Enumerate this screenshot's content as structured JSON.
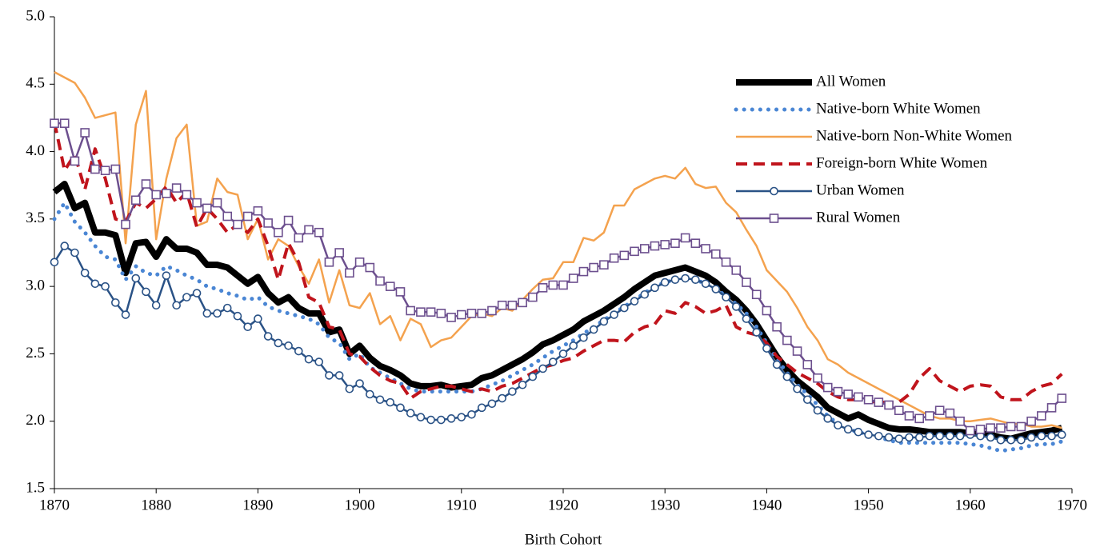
{
  "chart_data": {
    "type": "line",
    "x_label": "Birth Cohort",
    "x": [
      1870,
      1871,
      1872,
      1873,
      1874,
      1875,
      1876,
      1877,
      1878,
      1879,
      1880,
      1881,
      1882,
      1883,
      1884,
      1885,
      1886,
      1887,
      1888,
      1889,
      1890,
      1891,
      1892,
      1893,
      1894,
      1895,
      1896,
      1897,
      1898,
      1899,
      1900,
      1901,
      1902,
      1903,
      1904,
      1905,
      1906,
      1907,
      1908,
      1909,
      1910,
      1911,
      1912,
      1913,
      1914,
      1915,
      1916,
      1917,
      1918,
      1919,
      1920,
      1921,
      1922,
      1923,
      1924,
      1925,
      1926,
      1927,
      1928,
      1929,
      1930,
      1931,
      1932,
      1933,
      1934,
      1935,
      1936,
      1937,
      1938,
      1939,
      1940,
      1941,
      1942,
      1943,
      1944,
      1945,
      1946,
      1947,
      1948,
      1949,
      1950,
      1951,
      1952,
      1953,
      1954,
      1955,
      1956,
      1957,
      1958,
      1959,
      1960,
      1961,
      1962,
      1963,
      1964,
      1965,
      1966,
      1967,
      1968,
      1969
    ],
    "xlim": [
      1870,
      1970
    ],
    "xticks": [
      1870,
      1880,
      1890,
      1900,
      1910,
      1920,
      1930,
      1940,
      1950,
      1960,
      1970
    ],
    "ylim": [
      1.5,
      5.0
    ],
    "yticks": [
      {
        "value": 1.5,
        "label": "1.5"
      },
      {
        "value": 2.0,
        "label": "2.0"
      },
      {
        "value": 2.5,
        "label": "2.5"
      },
      {
        "value": 3.0,
        "label": "3.0"
      },
      {
        "value": 3.5,
        "label": "3.5"
      },
      {
        "value": 4.0,
        "label": "4.0"
      },
      {
        "value": 4.5,
        "label": "4.5"
      },
      {
        "value": 5.0,
        "label": "5.0"
      }
    ],
    "grid": false,
    "legend": "upper right",
    "series": [
      {
        "name": "All Women",
        "color": "#000000",
        "width": 8,
        "dash": "solid",
        "marker": null,
        "values": [
          3.7,
          3.76,
          3.58,
          3.62,
          3.4,
          3.4,
          3.38,
          3.1,
          3.32,
          3.33,
          3.22,
          3.35,
          3.28,
          3.28,
          3.25,
          3.16,
          3.16,
          3.14,
          3.08,
          3.02,
          3.07,
          2.95,
          2.88,
          2.92,
          2.84,
          2.8,
          2.8,
          2.66,
          2.68,
          2.5,
          2.56,
          2.47,
          2.41,
          2.38,
          2.34,
          2.28,
          2.26,
          2.26,
          2.27,
          2.25,
          2.26,
          2.27,
          2.32,
          2.34,
          2.38,
          2.42,
          2.46,
          2.51,
          2.57,
          2.6,
          2.64,
          2.68,
          2.74,
          2.78,
          2.82,
          2.87,
          2.92,
          2.98,
          3.03,
          3.08,
          3.1,
          3.12,
          3.14,
          3.11,
          3.08,
          3.03,
          2.96,
          2.9,
          2.82,
          2.72,
          2.6,
          2.48,
          2.38,
          2.3,
          2.24,
          2.18,
          2.1,
          2.06,
          2.02,
          2.05,
          2.01,
          1.98,
          1.95,
          1.94,
          1.94,
          1.93,
          1.92,
          1.92,
          1.92,
          1.92,
          1.91,
          1.91,
          1.9,
          1.88,
          1.87,
          1.89,
          1.91,
          1.92,
          1.93,
          1.95
        ]
      },
      {
        "name": "Native-born White Women",
        "color": "#4a86d4",
        "width": 5,
        "dash": "dotted",
        "marker": null,
        "values": [
          3.5,
          3.62,
          3.48,
          3.4,
          3.3,
          3.22,
          3.2,
          3.05,
          3.15,
          3.1,
          3.08,
          3.15,
          3.12,
          3.08,
          3.05,
          3.0,
          2.98,
          2.95,
          2.93,
          2.9,
          2.92,
          2.85,
          2.82,
          2.8,
          2.78,
          2.76,
          2.72,
          2.62,
          2.58,
          2.46,
          2.5,
          2.4,
          2.36,
          2.32,
          2.28,
          2.24,
          2.22,
          2.22,
          2.22,
          2.22,
          2.22,
          2.22,
          2.24,
          2.27,
          2.3,
          2.34,
          2.38,
          2.42,
          2.47,
          2.52,
          2.56,
          2.6,
          2.65,
          2.7,
          2.75,
          2.8,
          2.85,
          2.9,
          2.95,
          3.0,
          3.03,
          3.05,
          3.06,
          3.05,
          3.02,
          2.98,
          2.93,
          2.87,
          2.8,
          2.7,
          2.58,
          2.46,
          2.36,
          2.27,
          2.2,
          2.12,
          2.04,
          1.98,
          1.94,
          1.92,
          1.9,
          1.88,
          1.86,
          1.84,
          1.84,
          1.84,
          1.84,
          1.84,
          1.84,
          1.84,
          1.83,
          1.82,
          1.8,
          1.78,
          1.79,
          1.8,
          1.82,
          1.83,
          1.83,
          1.85
        ]
      },
      {
        "name": "Native-born Non-White Women",
        "color": "#f4a24e",
        "width": 2.5,
        "dash": "solid",
        "marker": null,
        "values": [
          4.59,
          4.55,
          4.51,
          4.4,
          4.25,
          4.27,
          4.29,
          3.32,
          4.2,
          4.45,
          3.35,
          3.8,
          4.1,
          4.2,
          3.45,
          3.48,
          3.8,
          3.7,
          3.68,
          3.35,
          3.5,
          3.2,
          3.35,
          3.3,
          3.15,
          3.02,
          3.2,
          2.88,
          3.12,
          2.86,
          2.84,
          2.95,
          2.72,
          2.78,
          2.6,
          2.76,
          2.72,
          2.55,
          2.6,
          2.62,
          2.7,
          2.78,
          2.8,
          2.78,
          2.84,
          2.82,
          2.9,
          2.98,
          3.05,
          3.06,
          3.18,
          3.18,
          3.36,
          3.34,
          3.4,
          3.6,
          3.6,
          3.72,
          3.76,
          3.8,
          3.82,
          3.8,
          3.88,
          3.76,
          3.73,
          3.74,
          3.62,
          3.55,
          3.42,
          3.3,
          3.12,
          3.04,
          2.96,
          2.84,
          2.7,
          2.6,
          2.46,
          2.42,
          2.36,
          2.32,
          2.28,
          2.24,
          2.2,
          2.16,
          2.12,
          2.08,
          2.04,
          2.02,
          2.02,
          2.0,
          2.0,
          2.01,
          2.02,
          2.0,
          1.98,
          1.98,
          1.96,
          1.96,
          1.97,
          1.95
        ]
      },
      {
        "name": "Foreign-born White Women",
        "color": "#c0141c",
        "width": 4,
        "dash": "dashed",
        "marker": null,
        "values": [
          4.22,
          3.86,
          3.98,
          3.72,
          4.02,
          3.8,
          3.5,
          3.48,
          3.62,
          3.58,
          3.65,
          3.74,
          3.62,
          3.7,
          3.44,
          3.58,
          3.5,
          3.4,
          3.46,
          3.4,
          3.5,
          3.3,
          3.05,
          3.32,
          3.18,
          2.92,
          2.88,
          2.7,
          2.68,
          2.5,
          2.48,
          2.4,
          2.34,
          2.3,
          2.28,
          2.17,
          2.22,
          2.24,
          2.26,
          2.26,
          2.24,
          2.22,
          2.24,
          2.22,
          2.26,
          2.28,
          2.32,
          2.36,
          2.4,
          2.42,
          2.45,
          2.47,
          2.52,
          2.56,
          2.6,
          2.6,
          2.59,
          2.66,
          2.7,
          2.72,
          2.82,
          2.8,
          2.88,
          2.85,
          2.8,
          2.82,
          2.86,
          2.7,
          2.66,
          2.64,
          2.58,
          2.48,
          2.42,
          2.36,
          2.32,
          2.28,
          2.22,
          2.18,
          2.16,
          2.16,
          2.15,
          2.14,
          2.14,
          2.14,
          2.2,
          2.32,
          2.39,
          2.3,
          2.26,
          2.22,
          2.26,
          2.27,
          2.26,
          2.18,
          2.16,
          2.16,
          2.22,
          2.26,
          2.28,
          2.35
        ]
      },
      {
        "name": "Urban Women",
        "color": "#2a5286",
        "width": 2.5,
        "dash": "solid",
        "marker": "circle",
        "values": [
          3.18,
          3.3,
          3.25,
          3.1,
          3.02,
          3.0,
          2.88,
          2.79,
          3.06,
          2.96,
          2.86,
          3.08,
          2.86,
          2.92,
          2.95,
          2.8,
          2.8,
          2.84,
          2.78,
          2.7,
          2.76,
          2.63,
          2.58,
          2.56,
          2.52,
          2.46,
          2.44,
          2.34,
          2.34,
          2.24,
          2.28,
          2.2,
          2.16,
          2.14,
          2.1,
          2.06,
          2.03,
          2.01,
          2.01,
          2.02,
          2.03,
          2.05,
          2.1,
          2.13,
          2.17,
          2.22,
          2.27,
          2.33,
          2.39,
          2.44,
          2.5,
          2.56,
          2.62,
          2.68,
          2.74,
          2.79,
          2.84,
          2.89,
          2.94,
          2.99,
          3.03,
          3.05,
          3.06,
          3.05,
          3.02,
          2.98,
          2.92,
          2.85,
          2.76,
          2.66,
          2.54,
          2.42,
          2.33,
          2.24,
          2.16,
          2.08,
          2.02,
          1.97,
          1.94,
          1.92,
          1.9,
          1.89,
          1.88,
          1.87,
          1.88,
          1.88,
          1.89,
          1.89,
          1.89,
          1.89,
          1.9,
          1.89,
          1.88,
          1.86,
          1.86,
          1.86,
          1.88,
          1.89,
          1.89,
          1.9
        ]
      },
      {
        "name": "Rural Women",
        "color": "#6c4f8e",
        "width": 2.5,
        "dash": "solid",
        "marker": "square",
        "values": [
          4.21,
          4.21,
          3.93,
          4.14,
          3.87,
          3.86,
          3.87,
          3.46,
          3.64,
          3.76,
          3.68,
          3.69,
          3.73,
          3.68,
          3.62,
          3.58,
          3.62,
          3.52,
          3.46,
          3.52,
          3.56,
          3.47,
          3.4,
          3.49,
          3.36,
          3.42,
          3.4,
          3.18,
          3.25,
          3.1,
          3.18,
          3.14,
          3.04,
          3.0,
          2.96,
          2.82,
          2.81,
          2.81,
          2.8,
          2.77,
          2.79,
          2.8,
          2.8,
          2.82,
          2.86,
          2.86,
          2.88,
          2.92,
          2.99,
          3.01,
          3.01,
          3.06,
          3.11,
          3.14,
          3.16,
          3.21,
          3.23,
          3.26,
          3.28,
          3.3,
          3.31,
          3.32,
          3.36,
          3.32,
          3.28,
          3.24,
          3.18,
          3.12,
          3.03,
          2.94,
          2.82,
          2.7,
          2.6,
          2.52,
          2.42,
          2.32,
          2.25,
          2.22,
          2.2,
          2.18,
          2.16,
          2.14,
          2.12,
          2.08,
          2.04,
          2.02,
          2.04,
          2.08,
          2.06,
          2.0,
          1.93,
          1.94,
          1.95,
          1.95,
          1.96,
          1.96,
          2.0,
          2.04,
          2.1,
          2.17
        ]
      }
    ]
  }
}
